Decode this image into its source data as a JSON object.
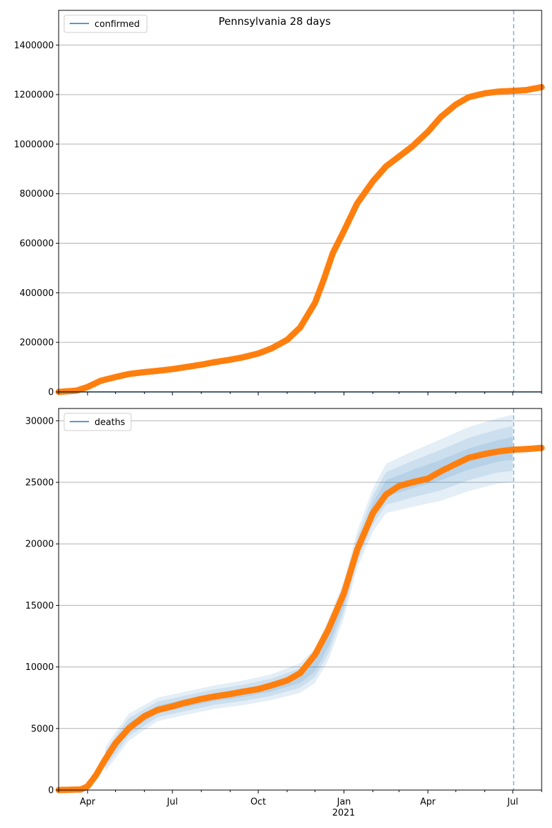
{
  "chart_data": [
    {
      "type": "line",
      "title": "Pennsylvania 28 days",
      "xlabel": "",
      "ylabel": "",
      "ylim": [
        0,
        1540000
      ],
      "grid": "horizontal",
      "legend_position": "upper left",
      "legend": [
        "confirmed"
      ],
      "y_ticks": [
        0,
        200000,
        400000,
        600000,
        800000,
        1000000,
        1200000,
        1400000
      ],
      "y_tick_labels": [
        "0",
        "200000",
        "400000",
        "600000",
        "800000",
        "1000000",
        "1200000",
        "1400000"
      ],
      "forecast_start": "2021-07-02",
      "colors": {
        "observed": "#ff7f0e",
        "model": "#1f77b4",
        "forecast_line": "#1f77b4",
        "grid": "#b0b0b0"
      },
      "series": [
        {
          "name": "confirmed",
          "x": [
            "2020-03-01",
            "2020-03-20",
            "2020-04-01",
            "2020-04-15",
            "2020-05-01",
            "2020-05-15",
            "2020-06-01",
            "2020-06-15",
            "2020-07-01",
            "2020-07-15",
            "2020-08-01",
            "2020-08-15",
            "2020-09-01",
            "2020-09-15",
            "2020-10-01",
            "2020-10-15",
            "2020-11-01",
            "2020-11-15",
            "2020-12-01",
            "2020-12-10",
            "2020-12-20",
            "2021-01-01",
            "2021-01-15",
            "2021-02-01",
            "2021-02-15",
            "2021-03-01",
            "2021-03-15",
            "2021-04-01",
            "2021-04-15",
            "2021-05-01",
            "2021-05-15",
            "2021-06-01",
            "2021-06-15",
            "2021-07-01",
            "2021-07-15",
            "2021-08-01"
          ],
          "y": [
            0,
            5000,
            20000,
            45000,
            60000,
            72000,
            80000,
            85000,
            92000,
            100000,
            110000,
            120000,
            130000,
            140000,
            155000,
            175000,
            210000,
            260000,
            360000,
            450000,
            560000,
            650000,
            760000,
            850000,
            910000,
            950000,
            990000,
            1050000,
            1110000,
            1160000,
            1190000,
            1205000,
            1212000,
            1215000,
            1218000,
            1230000
          ]
        },
        {
          "name": "",
          "x": [
            "2020-03-01",
            "2021-08-01"
          ],
          "y": [
            0,
            0
          ]
        }
      ]
    },
    {
      "type": "line",
      "title": "",
      "xlabel": "",
      "ylabel": "",
      "ylim": [
        0,
        31000
      ],
      "grid": "horizontal",
      "legend_position": "upper left",
      "legend": [
        "deaths"
      ],
      "y_ticks": [
        0,
        5000,
        10000,
        15000,
        20000,
        25000,
        30000
      ],
      "y_tick_labels": [
        "0",
        "5000",
        "10000",
        "15000",
        "20000",
        "25000",
        "30000"
      ],
      "x_ticks": [
        "2020-04-01",
        "2020-07-01",
        "2020-10-01",
        "2021-01-01",
        "2021-04-01",
        "2021-07-01"
      ],
      "x_tick_labels": [
        "Apr",
        "Jul",
        "Oct",
        "Jan",
        "Apr",
        "Jul"
      ],
      "x_year_label": "2021",
      "forecast_start": "2021-07-02",
      "colors": {
        "observed": "#ff7f0e",
        "model": "#1f77b4",
        "band": "#1f77b4",
        "forecast_line": "#1f77b4",
        "grid": "#b0b0b0"
      },
      "series": [
        {
          "name": "deaths",
          "x": [
            "2020-03-01",
            "2020-03-25",
            "2020-04-01",
            "2020-04-10",
            "2020-04-20",
            "2020-05-01",
            "2020-05-15",
            "2020-06-01",
            "2020-06-15",
            "2020-07-01",
            "2020-07-15",
            "2020-08-01",
            "2020-08-15",
            "2020-09-01",
            "2020-09-15",
            "2020-10-01",
            "2020-10-15",
            "2020-11-01",
            "2020-11-15",
            "2020-12-01",
            "2020-12-15",
            "2021-01-01",
            "2021-01-15",
            "2021-02-01",
            "2021-02-15",
            "2021-03-01",
            "2021-03-15",
            "2021-04-01",
            "2021-04-15",
            "2021-05-01",
            "2021-05-15",
            "2021-06-01",
            "2021-06-15",
            "2021-07-01",
            "2021-07-15",
            "2021-08-01"
          ],
          "y": [
            0,
            50,
            300,
            1200,
            2500,
            3800,
            5000,
            6000,
            6500,
            6800,
            7100,
            7400,
            7600,
            7800,
            8000,
            8200,
            8500,
            8900,
            9500,
            11000,
            13000,
            16000,
            19500,
            22500,
            24000,
            24700,
            25000,
            25300,
            25900,
            26500,
            27000,
            27300,
            27500,
            27650,
            27700,
            27800
          ]
        }
      ],
      "band": {
        "x": [
          "2020-04-20",
          "2020-05-15",
          "2020-06-15",
          "2020-07-15",
          "2020-08-15",
          "2020-09-15",
          "2020-10-15",
          "2020-11-15",
          "2020-12-01",
          "2020-12-15",
          "2021-01-01",
          "2021-01-15",
          "2021-02-01",
          "2021-02-15",
          "2021-03-15",
          "2021-04-15",
          "2021-05-15",
          "2021-06-15",
          "2021-07-01"
        ],
        "upper": [
          3500,
          6200,
          7500,
          8000,
          8500,
          8900,
          9400,
          10300,
          11500,
          13800,
          17000,
          21000,
          24500,
          26500,
          27500,
          28500,
          29500,
          30200,
          30500
        ],
        "lower": [
          1500,
          4000,
          5600,
          6100,
          6600,
          6900,
          7300,
          7900,
          8700,
          10500,
          14000,
          18000,
          21000,
          22500,
          23000,
          23500,
          24300,
          24900,
          25000
        ]
      }
    }
  ]
}
